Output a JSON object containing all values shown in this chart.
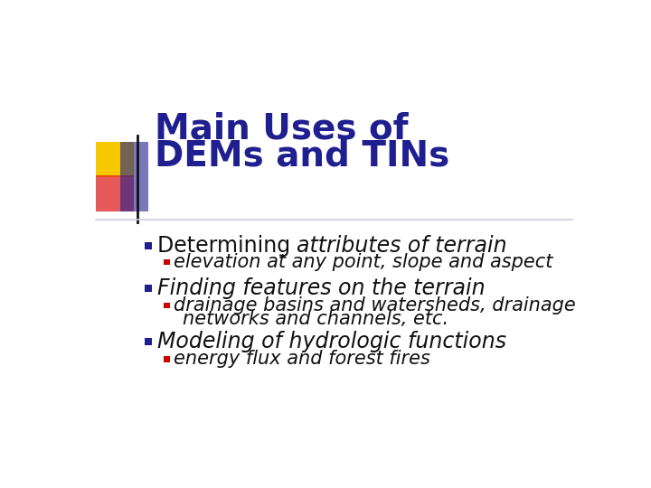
{
  "title_line1": "Main Uses of",
  "title_line2": "DEMs and TINs",
  "title_color": "#1f1f8f",
  "title_fontsize": 28,
  "background_color": "#ffffff",
  "header_line_color": "#aaaacc",
  "bullet1_normal": "Determining ",
  "bullet1_italic": "attributes of terrain",
  "sub1_text": "elevation at any point, slope and aspect",
  "bullet2_text": "Finding features on the terrain",
  "sub2_line1": "drainage basins and watersheds, drainage",
  "sub2_line2": "networks and channels, etc.",
  "bullet3_text": "Modeling of hydrologic functions",
  "sub3_text": "energy flux and forest fires",
  "bullet_color": "#1f1f8f",
  "sub_bullet_color": "#cc0000",
  "body_fontsize": 17,
  "sub_fontsize": 15,
  "logo_yellow": "#f5c800",
  "logo_red_start": "#cc0000",
  "logo_blue": "#1f1f8f",
  "logo_black_line": "#111111"
}
